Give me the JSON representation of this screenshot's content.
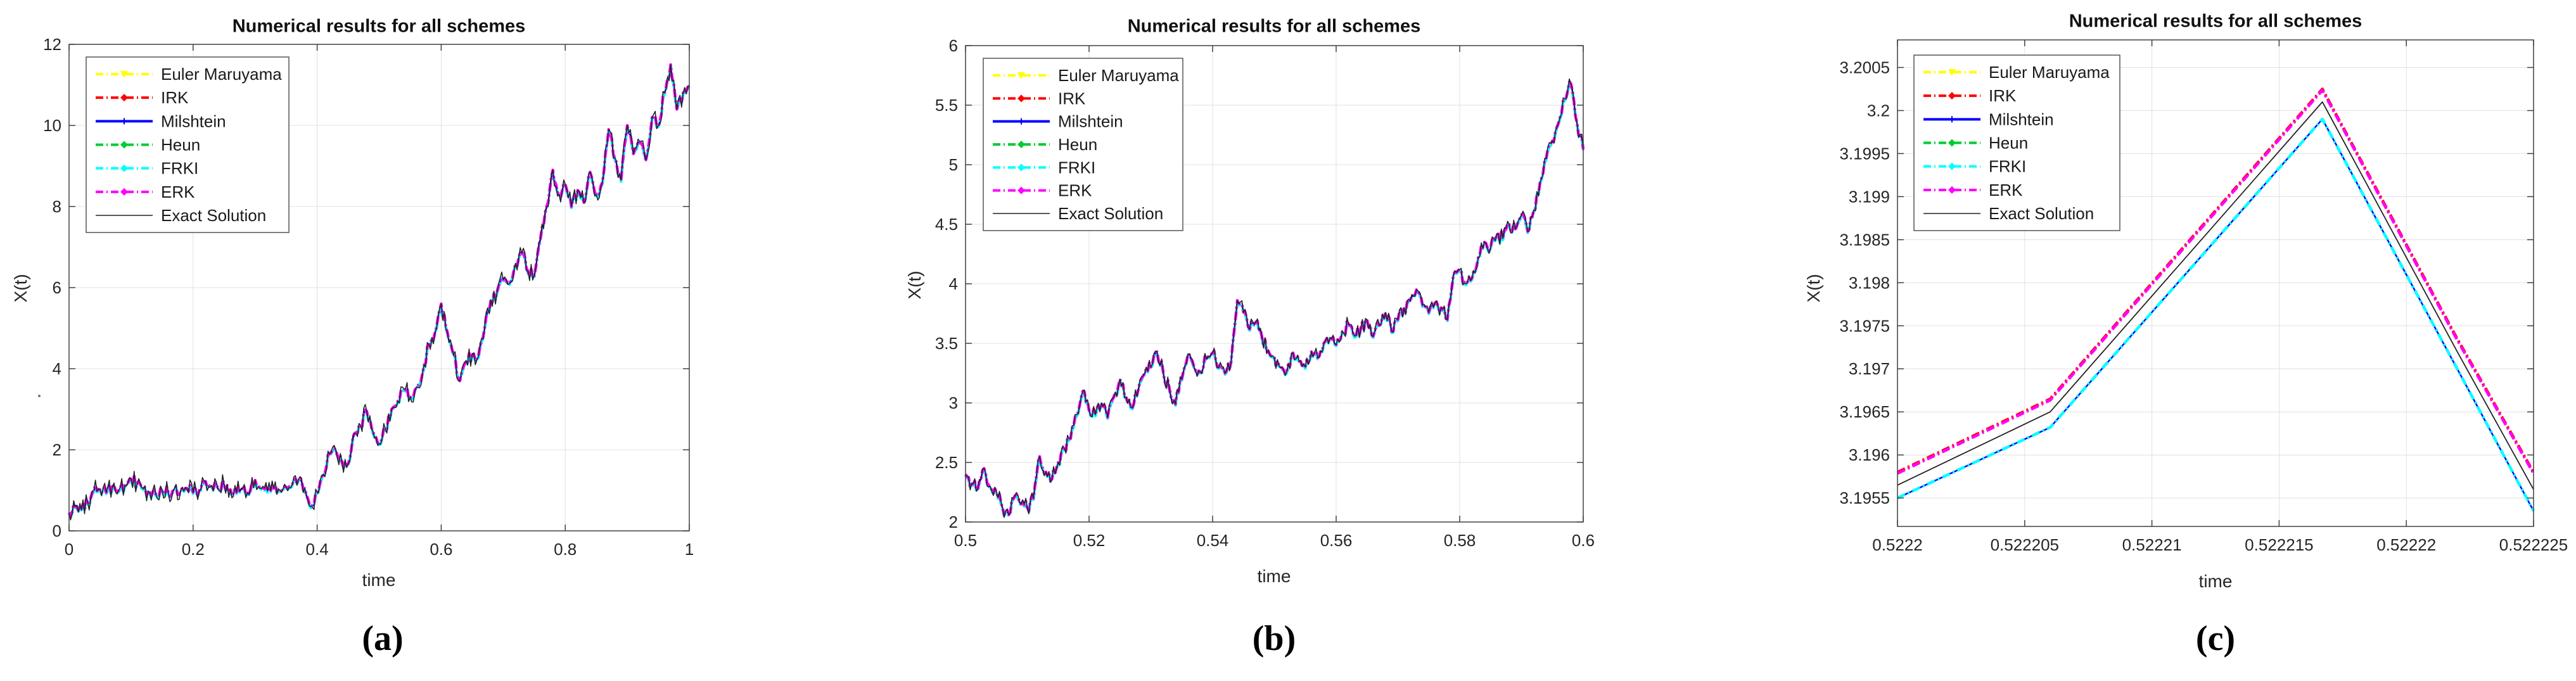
{
  "figure": {
    "captions": [
      "(a)",
      "(b)",
      "(c)"
    ],
    "background": "#FFFFFF",
    "grid_color": "#E0E0E0",
    "frame_color": "#404040",
    "tick_label_color": "#262626"
  },
  "chart_data": [
    {
      "type": "line",
      "title": "Numerical results for all schemes",
      "xlabel": "time",
      "ylabel": "X(t)",
      "xlim": [
        0,
        1
      ],
      "ylim": [
        0,
        12
      ],
      "grid": true,
      "xticks": {
        "labels": [
          "0",
          "0.2",
          "0.4",
          "0.6",
          "0.8",
          "1"
        ],
        "values": [
          0,
          0.2,
          0.4,
          0.6,
          0.8,
          1
        ]
      },
      "yticks": {
        "labels": [
          "0",
          "2",
          "4",
          "6",
          "8",
          "10",
          "12"
        ],
        "values": [
          0,
          2,
          4,
          6,
          8,
          10,
          12
        ]
      },
      "legend": {
        "position": "northwest",
        "entries": [
          {
            "label": "Euler Maruyama",
            "color": "#FFFF00",
            "line_style": "dash-dot",
            "marker": "triangle-down"
          },
          {
            "label": "IRK",
            "color": "#FF0000",
            "line_style": "dash-dot",
            "marker": "diamond"
          },
          {
            "label": "Milshtein",
            "color": "#0000FF",
            "line_style": "solid",
            "marker": "plus"
          },
          {
            "label": "Heun",
            "color": "#00CC33",
            "line_style": "dash-dot",
            "marker": "diamond"
          },
          {
            "label": "FRKI",
            "color": "#00FFFF",
            "line_style": "dash-dot",
            "marker": "diamond"
          },
          {
            "label": "ERK",
            "color": "#FF00FF",
            "line_style": "dash-dot",
            "marker": "diamond"
          },
          {
            "label": "Exact Solution",
            "color": "#222222",
            "line_style": "solid",
            "marker": "none"
          }
        ]
      },
      "noise_amplitude": 0.13,
      "trajectories": [
        {
          "members": [
            "Euler Maruyama",
            "IRK",
            "Milshtein",
            "Heun",
            "FRKI",
            "ERK",
            "Exact Solution"
          ],
          "note": "all seven curves visually overlap at this scale",
          "x": {
            "start": 0,
            "step": 0.01,
            "n": 101
          },
          "y": [
            0.45,
            0.6,
            0.52,
            0.7,
            1.0,
            1.02,
            0.95,
            1.1,
            1.0,
            1.12,
            1.28,
            1.18,
            1.05,
            0.95,
            0.9,
            1.02,
            0.95,
            1.05,
            1.0,
            1.05,
            0.95,
            1.0,
            1.22,
            1.12,
            1.05,
            1.15,
            1.02,
            0.95,
            1.05,
            0.9,
            1.25,
            1.05,
            0.98,
            1.05,
            1.0,
            1.08,
            1.15,
            1.28,
            1.05,
            0.6,
            0.95,
            1.4,
            1.9,
            2.0,
            1.7,
            1.65,
            2.4,
            2.6,
            2.95,
            2.45,
            2.15,
            2.5,
            3.0,
            3.2,
            3.5,
            3.3,
            3.55,
            3.9,
            4.6,
            4.9,
            5.6,
            4.9,
            4.35,
            3.7,
            4.2,
            4.35,
            4.3,
            5.0,
            5.7,
            5.9,
            6.2,
            6.1,
            6.6,
            6.85,
            6.4,
            6.3,
            7.2,
            8.0,
            8.9,
            8.3,
            8.55,
            8.0,
            8.4,
            8.1,
            8.85,
            8.3,
            8.6,
            9.9,
            9.2,
            8.65,
            10.0,
            9.3,
            9.6,
            9.15,
            10.2,
            10.0,
            10.8,
            11.5,
            10.4,
            10.8,
            11.0
          ]
        }
      ]
    },
    {
      "type": "line",
      "title": "Numerical results for all schemes",
      "xlabel": "time",
      "ylabel": "X(t)",
      "xlim": [
        0.5,
        0.6
      ],
      "ylim": [
        2,
        6
      ],
      "grid": true,
      "xticks": {
        "labels": [
          "0.5",
          "0.52",
          "0.54",
          "0.56",
          "0.58",
          "0.6"
        ],
        "values": [
          0.5,
          0.52,
          0.54,
          0.56,
          0.58,
          0.6
        ]
      },
      "yticks": {
        "labels": [
          "2",
          "2.5",
          "3",
          "3.5",
          "4",
          "4.5",
          "5",
          "5.5",
          "6"
        ],
        "values": [
          2,
          2.5,
          3,
          3.5,
          4,
          4.5,
          5,
          5.5,
          6
        ]
      },
      "legend": {
        "position": "northwest",
        "entries": [
          {
            "label": "Euler Maruyama",
            "color": "#FFFF00",
            "line_style": "dash-dot",
            "marker": "triangle-down"
          },
          {
            "label": "IRK",
            "color": "#FF0000",
            "line_style": "dash-dot",
            "marker": "diamond"
          },
          {
            "label": "Milshtein",
            "color": "#0000FF",
            "line_style": "solid",
            "marker": "plus"
          },
          {
            "label": "Heun",
            "color": "#00CC33",
            "line_style": "dash-dot",
            "marker": "diamond"
          },
          {
            "label": "FRKI",
            "color": "#00FFFF",
            "line_style": "dash-dot",
            "marker": "diamond"
          },
          {
            "label": "ERK",
            "color": "#FF00FF",
            "line_style": "dash-dot",
            "marker": "diamond"
          },
          {
            "label": "Exact Solution",
            "color": "#222222",
            "line_style": "solid",
            "marker": "none"
          }
        ]
      },
      "noise_amplitude": 0.05,
      "trajectories": [
        {
          "members": [
            "Euler Maruyama",
            "IRK",
            "Milshtein",
            "Heun",
            "FRKI",
            "ERK",
            "Exact Solution"
          ],
          "note": "zoom of panel (a) on t in [0.5,0.6]; all seven curves visually overlap",
          "x": {
            "start": 0.5,
            "step": 0.001,
            "n": 101
          },
          "y": [
            2.4,
            2.32,
            2.28,
            2.45,
            2.3,
            2.25,
            2.12,
            2.06,
            2.22,
            2.15,
            2.12,
            2.2,
            2.55,
            2.42,
            2.36,
            2.5,
            2.62,
            2.7,
            2.9,
            3.1,
            2.94,
            2.9,
            3.0,
            2.88,
            3.05,
            3.2,
            3.05,
            2.96,
            3.12,
            3.25,
            3.3,
            3.43,
            3.26,
            3.12,
            2.99,
            3.2,
            3.41,
            3.3,
            3.26,
            3.37,
            3.42,
            3.3,
            3.25,
            3.35,
            3.86,
            3.76,
            3.62,
            3.68,
            3.55,
            3.44,
            3.38,
            3.3,
            3.26,
            3.42,
            3.35,
            3.3,
            3.43,
            3.38,
            3.5,
            3.55,
            3.49,
            3.6,
            3.66,
            3.56,
            3.63,
            3.7,
            3.56,
            3.65,
            3.76,
            3.6,
            3.7,
            3.8,
            3.86,
            3.95,
            3.82,
            3.76,
            3.84,
            3.8,
            3.7,
            4.08,
            4.12,
            4.0,
            4.05,
            4.22,
            4.35,
            4.3,
            4.42,
            4.38,
            4.5,
            4.46,
            4.58,
            4.44,
            4.62,
            4.85,
            5.05,
            5.2,
            5.35,
            5.55,
            5.68,
            5.35,
            5.13
          ]
        }
      ]
    },
    {
      "type": "line",
      "title": "Numerical results for all schemes",
      "xlabel": "time",
      "ylabel": "X(t)",
      "xlim": [
        0.5222,
        0.522225
      ],
      "ylim": [
        3.19517,
        3.20082
      ],
      "grid": true,
      "xticks": {
        "labels": [
          "0.5222",
          "0.522205",
          "0.52221",
          "0.522215",
          "0.52222",
          "0.522225"
        ],
        "values": [
          0.5222,
          0.522205,
          0.52221,
          0.522215,
          0.52222,
          0.522225
        ]
      },
      "yticks": {
        "labels": [
          "3.1955",
          "3.196",
          "3.1965",
          "3.197",
          "3.1975",
          "3.198",
          "3.1985",
          "3.199",
          "3.1995",
          "3.2",
          "3.2005"
        ],
        "values": [
          3.1955,
          3.196,
          3.1965,
          3.197,
          3.1975,
          3.198,
          3.1985,
          3.199,
          3.1995,
          3.2,
          3.2005
        ]
      },
      "legend": {
        "position": "northwest",
        "entries": [
          {
            "label": "Euler Maruyama",
            "color": "#FFFF00",
            "line_style": "dash-dot",
            "marker": "triangle-down"
          },
          {
            "label": "IRK",
            "color": "#FF0000",
            "line_style": "dash-dot",
            "marker": "diamond"
          },
          {
            "label": "Milshtein",
            "color": "#0000FF",
            "line_style": "solid",
            "marker": "plus"
          },
          {
            "label": "Heun",
            "color": "#00CC33",
            "line_style": "dash-dot",
            "marker": "diamond"
          },
          {
            "label": "FRKI",
            "color": "#00FFFF",
            "line_style": "dash-dot",
            "marker": "diamond"
          },
          {
            "label": "ERK",
            "color": "#FF00FF",
            "line_style": "dash-dot",
            "marker": "diamond"
          },
          {
            "label": "Exact Solution",
            "color": "#222222",
            "line_style": "solid",
            "marker": "none"
          }
        ]
      },
      "noise_amplitude": 0,
      "trajectories": [
        {
          "members": [
            "IRK",
            "ERK"
          ],
          "note": "upper overlapping pair, peak at t = 0.5222167",
          "x": [
            0.5222,
            0.522206,
            0.5222167,
            0.522222,
            0.522225
          ],
          "y": [
            3.1958,
            3.19665,
            3.20025,
            3.19735,
            3.1958
          ]
        },
        {
          "members": [
            "Exact Solution"
          ],
          "x": [
            0.5222,
            0.522206,
            0.5222167,
            0.522222,
            0.522225
          ],
          "y": [
            3.19565,
            3.1965,
            3.2001,
            3.1972,
            3.1956
          ]
        },
        {
          "members": [
            "Euler Maruyama",
            "Milshtein",
            "Heun",
            "FRKI"
          ],
          "note": "lower overlapping group",
          "x": [
            0.5222,
            0.522206,
            0.5222167,
            0.522222,
            0.522225
          ],
          "y": [
            3.1955,
            3.19632,
            3.1999,
            3.197,
            3.19535
          ]
        }
      ]
    }
  ]
}
